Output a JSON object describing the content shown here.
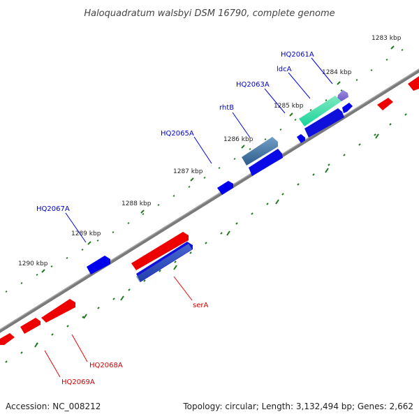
{
  "title": "Haloquadratum walsbyi DSM 16790, complete genome",
  "footer": {
    "accession": "Accession: NC_008212",
    "topology": "Topology: circular; Length: 3,132,494 bp; Genes: 2,662"
  },
  "colors": {
    "backbone": "#808080",
    "tick": "#1f7a1f",
    "forward_gene": "#0000ee",
    "reverse_gene": "#ee0000",
    "label_forward": "#0000cc",
    "label_reverse": "#cc0000"
  },
  "scale_labels": [
    "1283 kbp",
    "1284 kbp",
    "1285 kbp",
    "1286 kbp",
    "1287 kbp",
    "1288 kbp",
    "1289 kbp",
    "1290 kbp"
  ],
  "gene_labels": {
    "hq2061a": "HQ2061A",
    "ldca": "ldcA",
    "hq2063a": "HQ2063A",
    "rhtb": "rhtB",
    "hq2065a": "HQ2065A",
    "hq2067a": "HQ2067A",
    "sera": "serA",
    "hq2068a": "HQ2068A",
    "hq2069a": "HQ2069A"
  }
}
